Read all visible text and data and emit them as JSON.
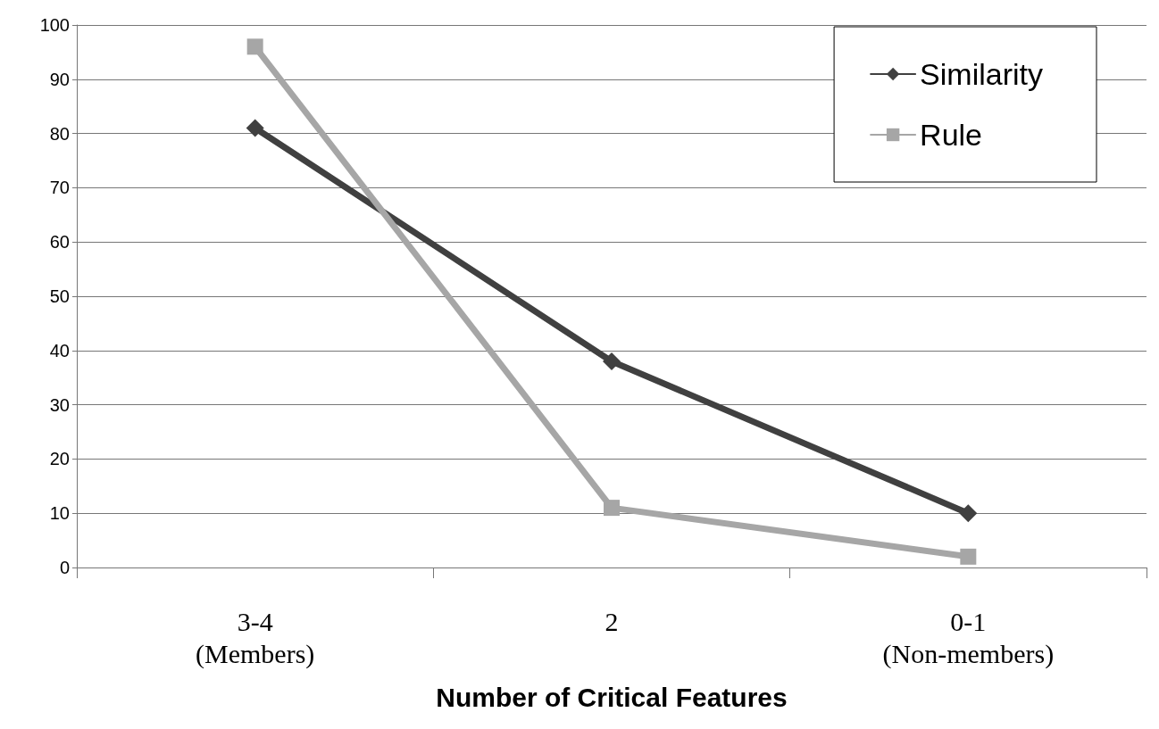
{
  "chart_data": {
    "type": "line",
    "xlabel": "Number of Critical Features",
    "categories": [
      "3-4\n(Members)",
      "2",
      "0-1\n(Non-members)"
    ],
    "series": [
      {
        "name": "Similarity",
        "color": "#404040",
        "values": [
          81,
          38,
          10
        ],
        "marker": "diamond"
      },
      {
        "name": "Rule",
        "color": "#a6a6a6",
        "values": [
          96,
          11,
          2
        ],
        "marker": "square"
      }
    ],
    "ylim": [
      0,
      100
    ],
    "yticks": [
      0,
      10,
      20,
      30,
      40,
      50,
      60,
      70,
      80,
      90,
      100
    ],
    "grid": "y",
    "legend": "top right",
    "line_style": "solid"
  }
}
